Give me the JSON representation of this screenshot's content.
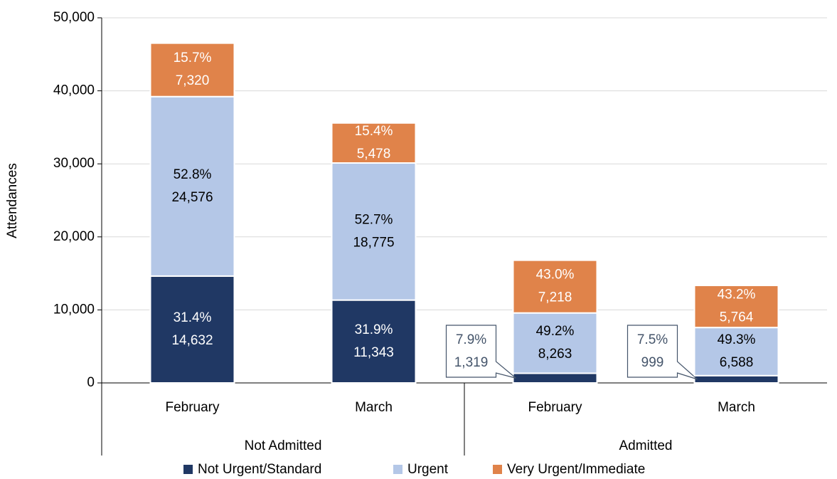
{
  "chart_data": {
    "type": "stacked-bar",
    "y_label": "Attendances",
    "categories": [
      "February",
      "March",
      "February",
      "March"
    ],
    "groups": [
      "Not Admitted",
      "Admitted"
    ],
    "series": [
      {
        "name": "Not Urgent/Standard",
        "color": "#203864",
        "label_color": "#ffffff",
        "values": [
          14632,
          11343,
          1319,
          999
        ],
        "value_labels": [
          "14,632",
          "11,343",
          "1,319",
          "999"
        ],
        "share_labels": [
          "31.4%",
          "31.9%",
          "7.9%",
          "7.5%"
        ]
      },
      {
        "name": "Urgent",
        "color": "#b4c7e7",
        "label_color": "#000000",
        "values": [
          24576,
          18775,
          8263,
          6588
        ],
        "value_labels": [
          "24,576",
          "18,775",
          "8,263",
          "6,588"
        ],
        "share_labels": [
          "52.8%",
          "52.7%",
          "49.2%",
          "49.3%"
        ]
      },
      {
        "name": "Very Urgent/Immediate",
        "color": "#e0834a",
        "label_color": "#ffffff",
        "values": [
          7320,
          5478,
          7218,
          5764
        ],
        "value_labels": [
          "7,320",
          "5,478",
          "7,218",
          "5,764"
        ],
        "share_labels": [
          "15.7%",
          "15.4%",
          "43.0%",
          "43.2%"
        ]
      }
    ],
    "ylim": [
      0,
      50000
    ],
    "yticks": [
      0,
      {
        "value": 10000,
        "label": "10,000"
      },
      {
        "value": 20000,
        "label": "20,000"
      },
      {
        "value": 30000,
        "label": "30,000"
      },
      {
        "value": 40000,
        "label": "40,000"
      },
      {
        "value": 50000,
        "label": "50,000"
      }
    ],
    "grid": true,
    "legend": "bottom"
  }
}
